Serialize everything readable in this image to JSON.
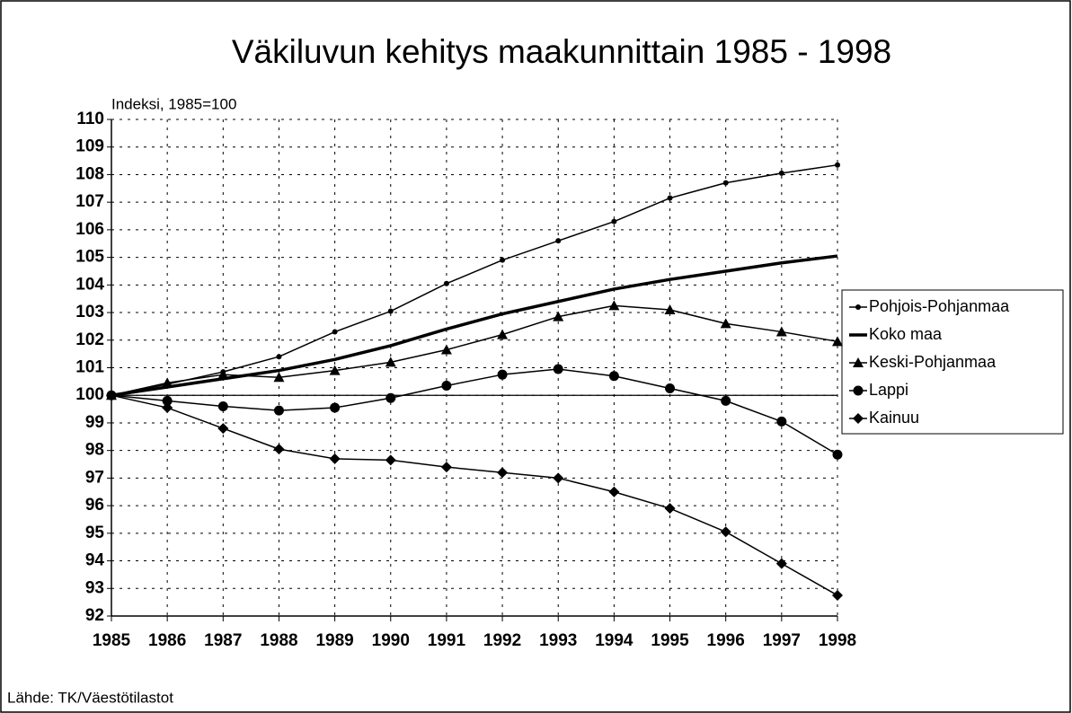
{
  "chart_data": {
    "type": "line",
    "title": "Väkiluvun kehitys maakunnittain 1985 - 1998",
    "y_label": "Indeksi, 1985=100",
    "source": "Lähde: TK/Väestötilastot",
    "x": [
      1985,
      1986,
      1987,
      1988,
      1989,
      1990,
      1991,
      1992,
      1993,
      1994,
      1995,
      1996,
      1997,
      1998
    ],
    "xlim": [
      1985,
      1998
    ],
    "xticks": [
      1985,
      1986,
      1987,
      1988,
      1989,
      1990,
      1991,
      1992,
      1993,
      1994,
      1995,
      1996,
      1997,
      1998
    ],
    "ylim": [
      92,
      110
    ],
    "yticks": [
      92,
      93,
      94,
      95,
      96,
      97,
      98,
      99,
      100,
      101,
      102,
      103,
      104,
      105,
      106,
      107,
      108,
      109,
      110
    ],
    "grid": true,
    "reference_line": 100,
    "legend": "right",
    "series": [
      {
        "name": "Pohjois-Pohjanmaa",
        "color": "#000000",
        "marker": "dot",
        "linewidth": 1.5,
        "values": [
          100,
          100.4,
          100.85,
          101.4,
          102.3,
          103.05,
          104.05,
          104.9,
          105.6,
          106.3,
          107.15,
          107.7,
          108.05,
          108.35
        ]
      },
      {
        "name": "Koko maa",
        "color": "#000000",
        "marker": "none",
        "linewidth": 3.5,
        "values": [
          100,
          100.3,
          100.6,
          100.9,
          101.3,
          101.8,
          102.4,
          102.95,
          103.4,
          103.85,
          104.2,
          104.5,
          104.8,
          105.05
        ]
      },
      {
        "name": "Keski-Pohjanmaa",
        "color": "#000000",
        "marker": "triangle",
        "linewidth": 1.5,
        "values": [
          100,
          100.45,
          100.75,
          100.65,
          100.9,
          101.2,
          101.65,
          102.2,
          102.85,
          103.25,
          103.1,
          102.6,
          102.3,
          101.95
        ]
      },
      {
        "name": "Lappi",
        "color": "#000000",
        "marker": "circle",
        "linewidth": 1.5,
        "values": [
          100,
          99.8,
          99.6,
          99.45,
          99.55,
          99.9,
          100.35,
          100.75,
          100.95,
          100.7,
          100.25,
          99.8,
          99.05,
          97.85
        ]
      },
      {
        "name": "Kainuu",
        "color": "#000000",
        "marker": "diamond",
        "linewidth": 1.5,
        "values": [
          100,
          99.55,
          98.8,
          98.05,
          97.7,
          97.65,
          97.4,
          97.2,
          97.0,
          96.5,
          95.9,
          95.05,
          93.9,
          92.75
        ]
      }
    ]
  }
}
